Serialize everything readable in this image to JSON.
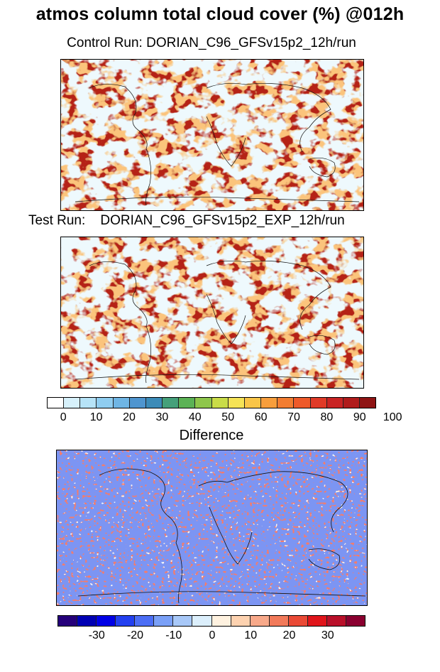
{
  "title": "atmos column total cloud cover (%) @012h",
  "control": {
    "label": "Control Run: DORIAN_C96_GFSv15p2_12h/run"
  },
  "test": {
    "label": "Test Run:    DORIAN_C96_GFSv15p2_EXP_12h/run"
  },
  "difference": {
    "label": "Difference"
  },
  "colorbar_cloud": {
    "colors": [
      "#ffffff",
      "#d7f1fb",
      "#b6e3f7",
      "#8fcdf0",
      "#6fb5e4",
      "#4f95cf",
      "#3c8bb8",
      "#45a07a",
      "#5bb255",
      "#8ec64b",
      "#c9dc48",
      "#f5e356",
      "#f9c548",
      "#f79e3c",
      "#f27d31",
      "#ee5a2a",
      "#e03a27",
      "#c92424",
      "#b01c1c",
      "#8f1414"
    ],
    "ticks": [
      "0",
      "10",
      "20",
      "30",
      "40",
      "50",
      "60",
      "70",
      "80",
      "90",
      "100"
    ]
  },
  "colorbar_diff": {
    "colors": [
      "#25007a",
      "#0000b4",
      "#0000e6",
      "#2340f0",
      "#4c6ef5",
      "#7aa0f7",
      "#a8c8f8",
      "#dceffc",
      "#fff2e0",
      "#fdd2b0",
      "#f8a98a",
      "#f27a5a",
      "#ea4a36",
      "#e0151b",
      "#b9102a",
      "#8a0030"
    ],
    "ticks": [
      "-30",
      "-20",
      "-10",
      "0",
      "10",
      "20",
      "30"
    ]
  }
}
